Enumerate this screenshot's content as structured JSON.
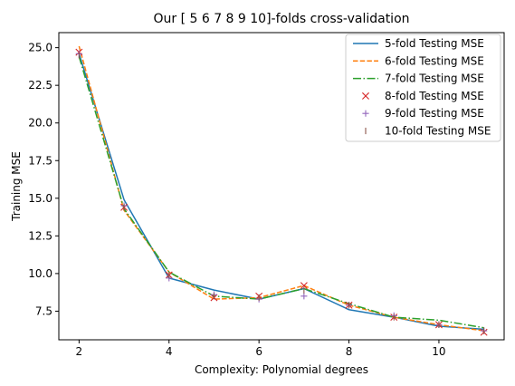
{
  "chart_data": {
    "type": "line",
    "title": "Our [ 5  6  7  8  9 10]-folds cross-validation",
    "xlabel": "Complexity: Polynomial degrees",
    "ylabel": "Training MSE",
    "x": [
      2,
      3,
      4,
      5,
      6,
      7,
      8,
      9,
      10,
      11
    ],
    "xlim": [
      1.55,
      11.45
    ],
    "ylim": [
      5.6,
      26.0
    ],
    "xticks": [
      2,
      4,
      6,
      8,
      10
    ],
    "yticks": [
      7.5,
      10.0,
      12.5,
      15.0,
      17.5,
      20.0,
      22.5,
      25.0
    ],
    "xtick_labels": [
      "2",
      "4",
      "6",
      "8",
      "10"
    ],
    "ytick_labels": [
      "7.5",
      "10.0",
      "12.5",
      "15.0",
      "17.5",
      "20.0",
      "22.5",
      "25.0"
    ],
    "grid": false,
    "legend_position": "top-right",
    "series": [
      {
        "name": "5-fold Testing MSE",
        "style": "line-solid",
        "color": "#1f77b4",
        "values": [
          24.6,
          14.9,
          9.7,
          8.9,
          8.3,
          9.0,
          7.6,
          7.1,
          6.5,
          6.3
        ]
      },
      {
        "name": "6-fold Testing MSE",
        "style": "line-dashed",
        "color": "#ff7f0e",
        "values": [
          25.1,
          14.2,
          10.1,
          8.3,
          8.4,
          9.2,
          7.9,
          7.1,
          6.6,
          6.2
        ]
      },
      {
        "name": "7-fold Testing MSE",
        "style": "line-dashdot",
        "color": "#2ca02c",
        "values": [
          24.4,
          14.3,
          10.1,
          8.5,
          8.3,
          9.0,
          8.0,
          7.1,
          6.9,
          6.4
        ]
      },
      {
        "name": "8-fold Testing MSE",
        "style": "marker-x",
        "color": "#d62728",
        "values": [
          24.7,
          14.4,
          9.9,
          8.4,
          8.5,
          9.2,
          7.9,
          7.1,
          6.6,
          6.1
        ]
      },
      {
        "name": "9-fold Testing MSE",
        "style": "marker-plus",
        "color": "#9467bd",
        "values": [
          24.6,
          14.5,
          9.7,
          8.6,
          8.3,
          8.5,
          7.9,
          7.2,
          6.6,
          6.2
        ]
      },
      {
        "name": "10-fold Testing MSE",
        "style": "marker-vline",
        "color": "#8c564b",
        "values": [
          24.5,
          14.4,
          9.9,
          8.5,
          8.4,
          8.9,
          7.9,
          7.1,
          6.6,
          6.2
        ]
      }
    ]
  }
}
